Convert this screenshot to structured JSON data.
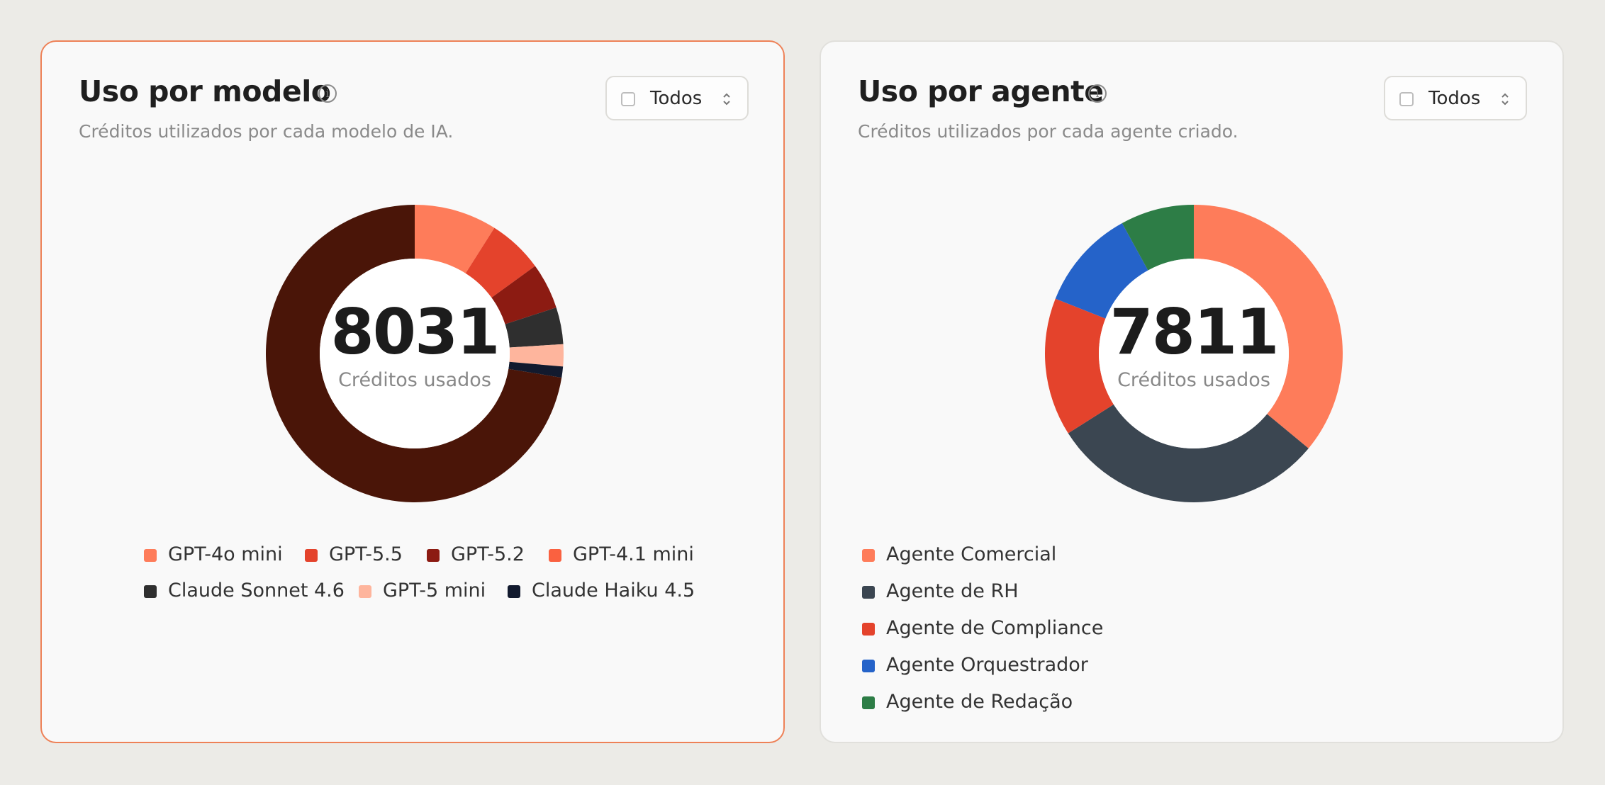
{
  "model_card": {
    "title": "Uso por modelo",
    "subtitle": "Créditos utilizados por cada modelo de IA.",
    "select_label": "Todos",
    "total": "8031",
    "total_label": "Créditos usados"
  },
  "agent_card": {
    "title": "Uso por agente",
    "subtitle": "Créditos utilizados por cada agente criado.",
    "select_label": "Todos",
    "total": "7811",
    "total_label": "Créditos usados"
  },
  "icons": [
    "info-icon",
    "checkbox-icon",
    "chevron-updown-icon"
  ],
  "chart_data": [
    {
      "type": "pie",
      "title": "Uso por modelo",
      "total": 8031,
      "slices": [
        {
          "label": "GPT-4o mini",
          "value": 722,
          "color": "#fe7c5a"
        },
        {
          "label": "GPT-5.5",
          "value": 482,
          "color": "#e4432c"
        },
        {
          "label": "GPT-5.2",
          "value": 402,
          "color": "#8c1b12"
        },
        {
          "label": "GPT-4.1 mini",
          "value": 0,
          "color": "#fa6140"
        },
        {
          "label": "Claude Sonnet 4.6",
          "value": 321,
          "color": "#2f2f2f"
        },
        {
          "label": "GPT-5 mini",
          "value": 193,
          "color": "#feb59d"
        },
        {
          "label": "Claude Haiku 4.5",
          "value": 96,
          "color": "#121a2e"
        },
        {
          "label": "",
          "value": 5815,
          "color": "#4a1508"
        }
      ],
      "legend_placement": "bottom"
    },
    {
      "type": "pie",
      "title": "Uso por agente",
      "total": 7811,
      "slices": [
        {
          "label": "Agente Comercial",
          "value": 2812,
          "color": "#fe7c5a"
        },
        {
          "label": "Agente de RH",
          "value": 2343,
          "color": "#3b4651"
        },
        {
          "label": "Agente de Compliance",
          "value": 1172,
          "color": "#e4432c"
        },
        {
          "label": "Agente Orquestrador",
          "value": 859,
          "color": "#2563c9"
        },
        {
          "label": "Agente de Redação",
          "value": 625,
          "color": "#2d7d46"
        }
      ],
      "legend_placement": "bottom"
    }
  ]
}
